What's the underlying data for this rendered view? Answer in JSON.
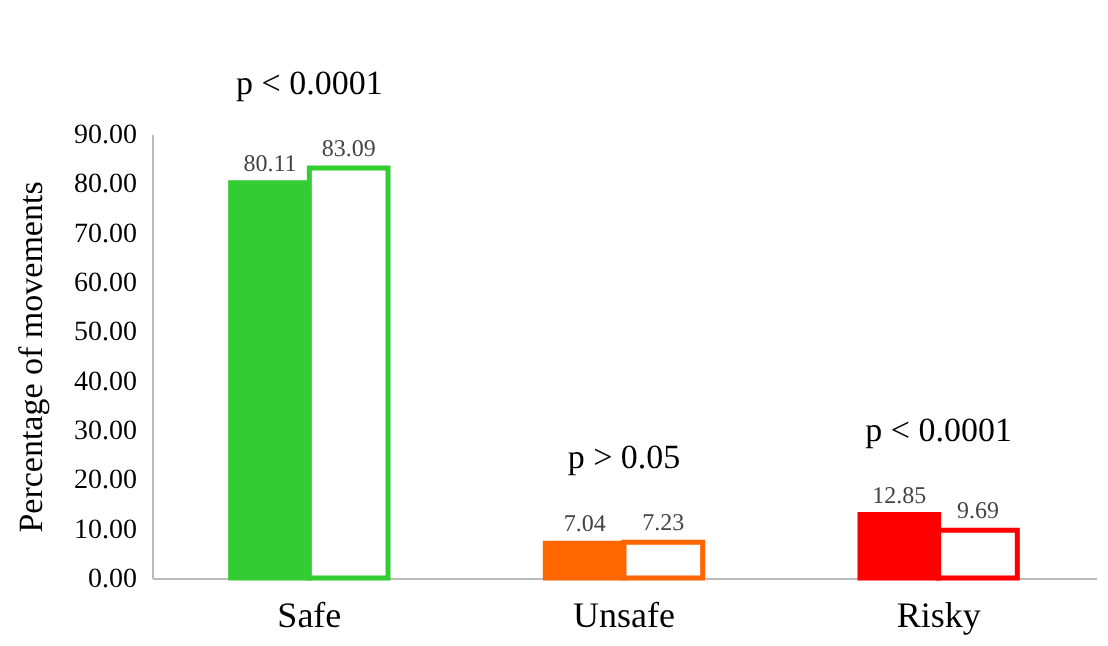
{
  "chart_data": {
    "type": "bar",
    "ylabel": "Percentage of movements",
    "categories": [
      "Safe",
      "Unsafe",
      "Risky"
    ],
    "series": [
      {
        "colors": [
          "#33cc33",
          "#ff6600",
          "#ff0000"
        ],
        "values": [
          80.11,
          7.04,
          12.85
        ]
      },
      {
        "colors": [
          "#33cc33",
          "#ff6600",
          "#ff0000"
        ],
        "values": [
          83.09,
          7.23,
          9.69
        ]
      }
    ],
    "ylim": [
      0,
      90
    ],
    "yticks": [
      {
        "value": 0,
        "label": "0.00"
      },
      {
        "value": 10,
        "label": "10.00"
      },
      {
        "value": 20,
        "label": "20.00"
      },
      {
        "value": 30,
        "label": "30.00"
      },
      {
        "value": 40,
        "label": "40.00"
      },
      {
        "value": 50,
        "label": "50.00"
      },
      {
        "value": 60,
        "label": "60.00"
      },
      {
        "value": 70,
        "label": "70.00"
      },
      {
        "value": 80,
        "label": "80.00"
      },
      {
        "value": 90,
        "label": "90.00"
      }
    ],
    "data_labels": true,
    "annotations": [
      "p < 0.0001",
      "p > 0.05",
      "p < 0.0001"
    ]
  }
}
